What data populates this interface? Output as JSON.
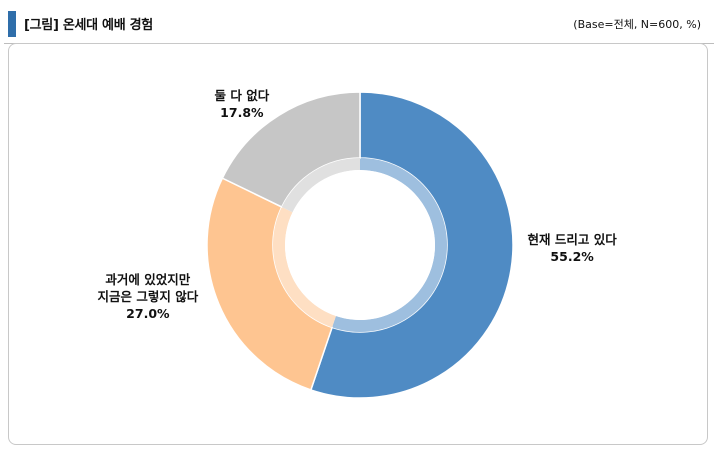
{
  "header": {
    "title": "[그림] 온세대 예배 경험",
    "base_note": "(Base=전체, N=600, %)"
  },
  "chart_data": {
    "type": "pie",
    "title": "[그림] 온세대 예배 경험",
    "unit": "%",
    "slices": [
      {
        "label_lines": [
          "현재 드리고 있다"
        ],
        "value": 55.2,
        "value_label": "55.2%",
        "color": "#4f8bc4"
      },
      {
        "label_lines": [
          "과거에 있었지만",
          "지금은 그렇지 않다"
        ],
        "value": 27.0,
        "value_label": "27.0%",
        "color": "#fec591"
      },
      {
        "label_lines": [
          "둘 다 없다"
        ],
        "value": 17.8,
        "value_label": "17.8%",
        "color": "#c6c6c6"
      }
    ],
    "legend": "none"
  }
}
